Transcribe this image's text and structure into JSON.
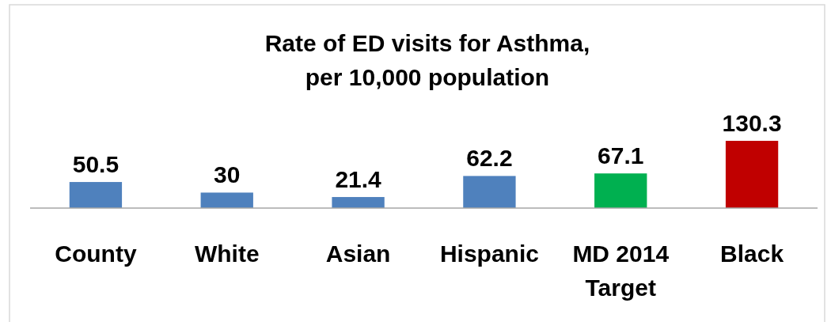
{
  "chart_data": {
    "type": "bar",
    "title": "Rate of ED visits for Asthma,\nper 10,000 population",
    "categories": [
      "County",
      "White",
      "Asian",
      "Hispanic",
      "MD 2014 Target",
      "Black"
    ],
    "values": [
      50.5,
      30,
      21.4,
      62.2,
      67.1,
      130.3
    ],
    "colors": [
      "#4f81bd",
      "#4f81bd",
      "#4f81bd",
      "#4f81bd",
      "#00b050",
      "#c00000"
    ],
    "relative": false,
    "data_labels": true
  }
}
